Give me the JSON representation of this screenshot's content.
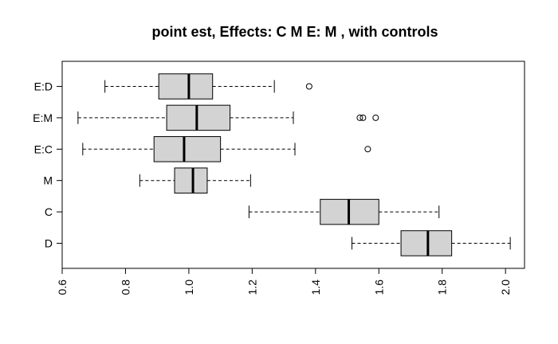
{
  "colors": {
    "box_fill": "#d3d3d3",
    "stroke": "#000000",
    "background": "#ffffff"
  },
  "chart_data": {
    "type": "boxplot",
    "orientation": "horizontal",
    "title": "point est, Effects: C M  E: M , with controls",
    "xlabel": "",
    "ylabel": "",
    "xlim": [
      0.6,
      2.06
    ],
    "x_ticks": [
      "0.6",
      "0.8",
      "1.0",
      "1.2",
      "1.4",
      "1.6",
      "1.8",
      "2.0"
    ],
    "grid": false,
    "legend": "none",
    "categories": [
      "D",
      "C",
      "M",
      "E:C",
      "E:M",
      "E:D"
    ],
    "boxes": [
      {
        "label": "D",
        "whisker_low": 1.515,
        "q1": 1.67,
        "median": 1.755,
        "q3": 1.83,
        "whisker_high": 2.015,
        "outliers": []
      },
      {
        "label": "C",
        "whisker_low": 1.19,
        "q1": 1.415,
        "median": 1.505,
        "q3": 1.6,
        "whisker_high": 1.79,
        "outliers": []
      },
      {
        "label": "M",
        "whisker_low": 0.845,
        "q1": 0.955,
        "median": 1.013,
        "q3": 1.058,
        "whisker_high": 1.195,
        "outliers": []
      },
      {
        "label": "E:C",
        "whisker_low": 0.665,
        "q1": 0.89,
        "median": 0.985,
        "q3": 1.1,
        "whisker_high": 1.335,
        "outliers": [
          1.565
        ]
      },
      {
        "label": "E:M",
        "whisker_low": 0.65,
        "q1": 0.93,
        "median": 1.025,
        "q3": 1.13,
        "whisker_high": 1.33,
        "outliers": [
          1.54,
          1.55,
          1.59
        ]
      },
      {
        "label": "E:D",
        "whisker_low": 0.735,
        "q1": 0.905,
        "median": 1.0,
        "q3": 1.075,
        "whisker_high": 1.27,
        "outliers": [
          1.38
        ]
      }
    ]
  }
}
